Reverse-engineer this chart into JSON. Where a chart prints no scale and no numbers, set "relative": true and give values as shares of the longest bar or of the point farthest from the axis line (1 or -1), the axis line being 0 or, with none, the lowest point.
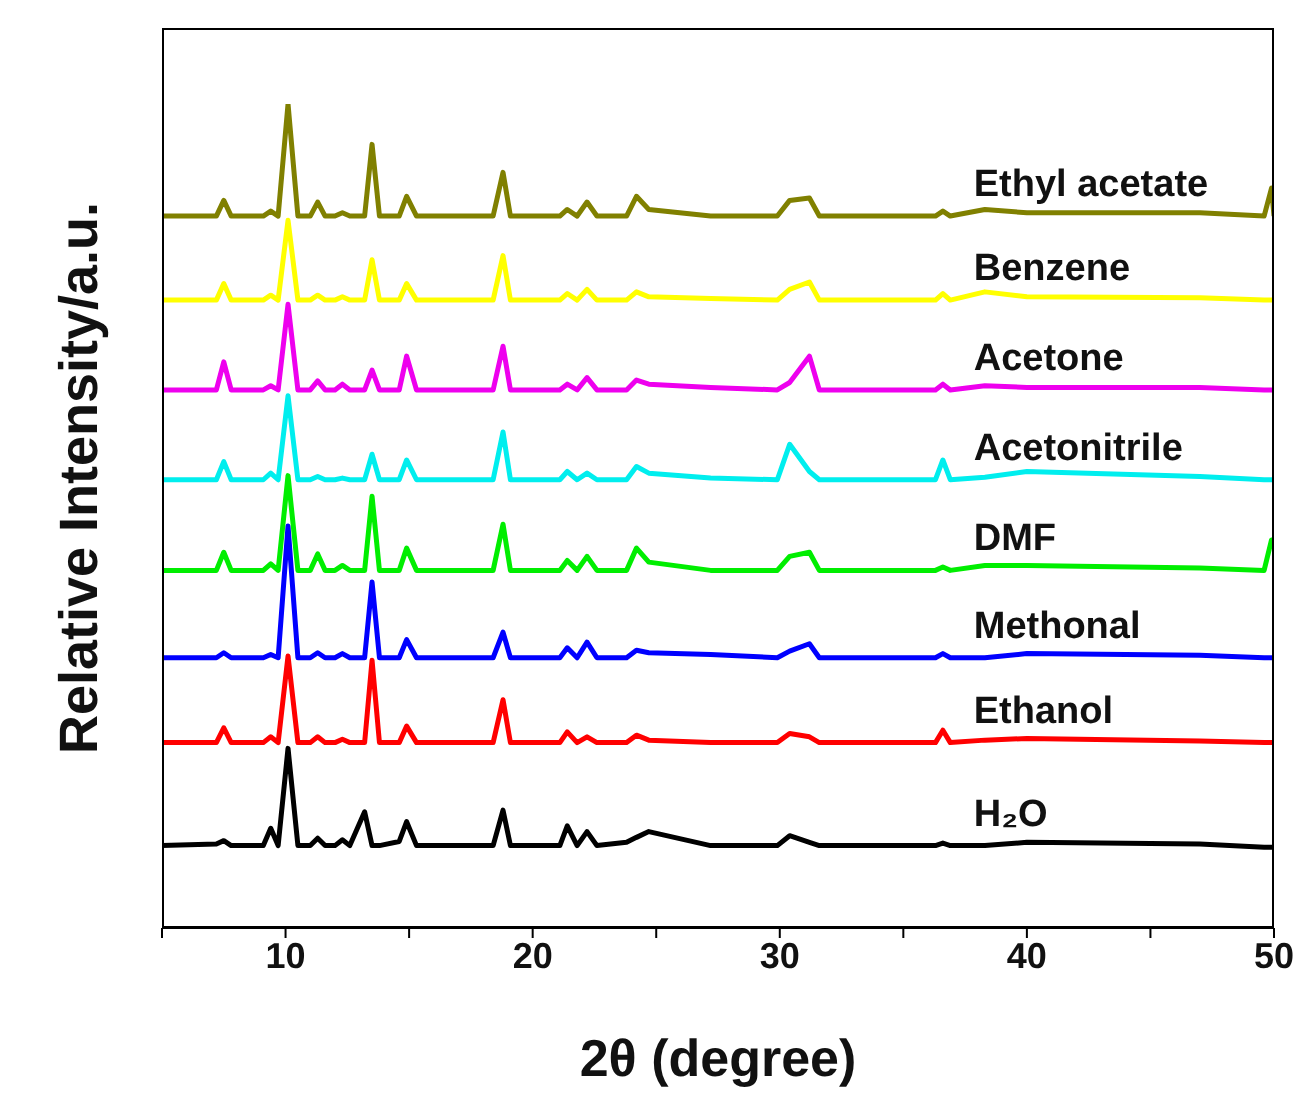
{
  "chart_data": {
    "type": "line",
    "relative": true,
    "xlabel": "2θ (degree)",
    "ylabel": "Relative Intensity/a.u.",
    "x": [
      5,
      7.2,
      7.5,
      7.8,
      9.1,
      9.4,
      9.7,
      10.1,
      10.5,
      11.0,
      11.3,
      11.6,
      12.0,
      12.3,
      12.6,
      13.2,
      13.5,
      13.8,
      14.6,
      14.9,
      15.3,
      18.4,
      18.8,
      19.1,
      21.1,
      21.4,
      21.8,
      22.2,
      22.6,
      23.8,
      24.2,
      24.7,
      27.2,
      29.9,
      30.4,
      31.2,
      31.6,
      36.3,
      36.6,
      36.9,
      38.3,
      40,
      47,
      49.6,
      49.9,
      50
    ],
    "xlim": [
      5,
      50
    ],
    "xticks": [
      {
        "value": 5,
        "label": null
      },
      10,
      {
        "value": 15,
        "label": null
      },
      20,
      {
        "value": 25,
        "label": null
      },
      30,
      {
        "value": 35,
        "label": null
      },
      40,
      {
        "value": 45,
        "label": null
      },
      50
    ],
    "grid": false,
    "legend": false,
    "marker": "none",
    "line_style": "solid",
    "series": [
      {
        "name": "H₂O",
        "color": "#000000",
        "values": [
          0.1,
          0.102,
          0.106,
          0.1,
          0.1,
          0.121,
          0.1,
          0.218,
          0.1,
          0.1,
          0.109,
          0.1,
          0.1,
          0.107,
          0.1,
          0.141,
          0.1,
          0.1,
          0.105,
          0.129,
          0.1,
          0.1,
          0.143,
          0.1,
          0.1,
          0.124,
          0.1,
          0.117,
          0.1,
          0.104,
          0.11,
          0.117,
          0.1,
          0.1,
          0.112,
          0.104,
          0.1,
          0.1,
          0.103,
          0.1,
          0.1,
          0.104,
          0.102,
          0.098,
          0.098,
          0.098
        ]
      },
      {
        "name": "Ethanol",
        "color": "#ff0000",
        "values": [
          0.225,
          0.225,
          0.243,
          0.225,
          0.225,
          0.232,
          0.225,
          0.33,
          0.225,
          0.225,
          0.232,
          0.225,
          0.225,
          0.229,
          0.225,
          0.225,
          0.325,
          0.225,
          0.225,
          0.245,
          0.225,
          0.225,
          0.277,
          0.225,
          0.225,
          0.238,
          0.225,
          0.232,
          0.225,
          0.225,
          0.234,
          0.228,
          0.225,
          0.225,
          0.236,
          0.232,
          0.225,
          0.225,
          0.24,
          0.225,
          0.228,
          0.23,
          0.227,
          0.225,
          0.225,
          0.225
        ]
      },
      {
        "name": "Methonal",
        "color": "#0000ff",
        "values": [
          0.328,
          0.328,
          0.334,
          0.328,
          0.328,
          0.332,
          0.328,
          0.488,
          0.328,
          0.328,
          0.334,
          0.328,
          0.328,
          0.333,
          0.328,
          0.328,
          0.42,
          0.328,
          0.328,
          0.35,
          0.328,
          0.328,
          0.359,
          0.328,
          0.328,
          0.34,
          0.328,
          0.347,
          0.328,
          0.328,
          0.337,
          0.334,
          0.332,
          0.328,
          0.336,
          0.345,
          0.328,
          0.328,
          0.333,
          0.328,
          0.328,
          0.333,
          0.331,
          0.328,
          0.328,
          0.328
        ]
      },
      {
        "name": "DMF",
        "color": "#00ee00",
        "values": [
          0.434,
          0.434,
          0.456,
          0.434,
          0.434,
          0.442,
          0.434,
          0.549,
          0.434,
          0.434,
          0.454,
          0.434,
          0.434,
          0.44,
          0.434,
          0.434,
          0.524,
          0.434,
          0.434,
          0.461,
          0.434,
          0.434,
          0.49,
          0.434,
          0.434,
          0.446,
          0.434,
          0.451,
          0.434,
          0.434,
          0.461,
          0.444,
          0.434,
          0.434,
          0.451,
          0.456,
          0.434,
          0.434,
          0.438,
          0.434,
          0.44,
          0.44,
          0.437,
          0.434,
          0.471,
          0.471
        ]
      },
      {
        "name": "Acetonitrile",
        "color": "#00eeee",
        "values": [
          0.544,
          0.544,
          0.566,
          0.544,
          0.544,
          0.552,
          0.544,
          0.646,
          0.544,
          0.544,
          0.548,
          0.544,
          0.544,
          0.546,
          0.544,
          0.544,
          0.575,
          0.544,
          0.544,
          0.568,
          0.544,
          0.544,
          0.602,
          0.544,
          0.544,
          0.554,
          0.544,
          0.552,
          0.544,
          0.544,
          0.56,
          0.552,
          0.546,
          0.544,
          0.587,
          0.554,
          0.544,
          0.544,
          0.568,
          0.544,
          0.547,
          0.554,
          0.548,
          0.544,
          0.544,
          0.544
        ]
      },
      {
        "name": "Acetone",
        "color": "#ee00ee",
        "values": [
          0.653,
          0.653,
          0.687,
          0.653,
          0.653,
          0.658,
          0.653,
          0.757,
          0.653,
          0.653,
          0.664,
          0.653,
          0.653,
          0.66,
          0.653,
          0.653,
          0.677,
          0.653,
          0.653,
          0.694,
          0.653,
          0.653,
          0.706,
          0.653,
          0.653,
          0.66,
          0.653,
          0.668,
          0.653,
          0.653,
          0.665,
          0.66,
          0.656,
          0.653,
          0.662,
          0.694,
          0.653,
          0.653,
          0.66,
          0.653,
          0.658,
          0.656,
          0.656,
          0.653,
          0.653,
          0.653
        ]
      },
      {
        "name": "Benzene",
        "color": "#ffff00",
        "values": [
          0.762,
          0.762,
          0.782,
          0.762,
          0.762,
          0.768,
          0.762,
          0.859,
          0.762,
          0.762,
          0.768,
          0.762,
          0.762,
          0.766,
          0.762,
          0.762,
          0.811,
          0.762,
          0.762,
          0.782,
          0.762,
          0.762,
          0.816,
          0.762,
          0.762,
          0.77,
          0.762,
          0.775,
          0.762,
          0.762,
          0.772,
          0.766,
          0.764,
          0.762,
          0.775,
          0.784,
          0.762,
          0.762,
          0.77,
          0.762,
          0.772,
          0.766,
          0.765,
          0.762,
          0.762,
          0.762
        ]
      },
      {
        "name": "Ethyl acetate",
        "color": "#808000",
        "values": [
          0.864,
          0.864,
          0.883,
          0.864,
          0.864,
          0.87,
          0.864,
          1.0,
          0.864,
          0.864,
          0.881,
          0.864,
          0.864,
          0.868,
          0.864,
          0.864,
          0.951,
          0.864,
          0.864,
          0.888,
          0.864,
          0.864,
          0.917,
          0.864,
          0.864,
          0.872,
          0.864,
          0.881,
          0.864,
          0.864,
          0.888,
          0.872,
          0.864,
          0.864,
          0.883,
          0.886,
          0.864,
          0.864,
          0.87,
          0.864,
          0.872,
          0.868,
          0.868,
          0.864,
          0.898,
          0.864
        ]
      }
    ]
  }
}
